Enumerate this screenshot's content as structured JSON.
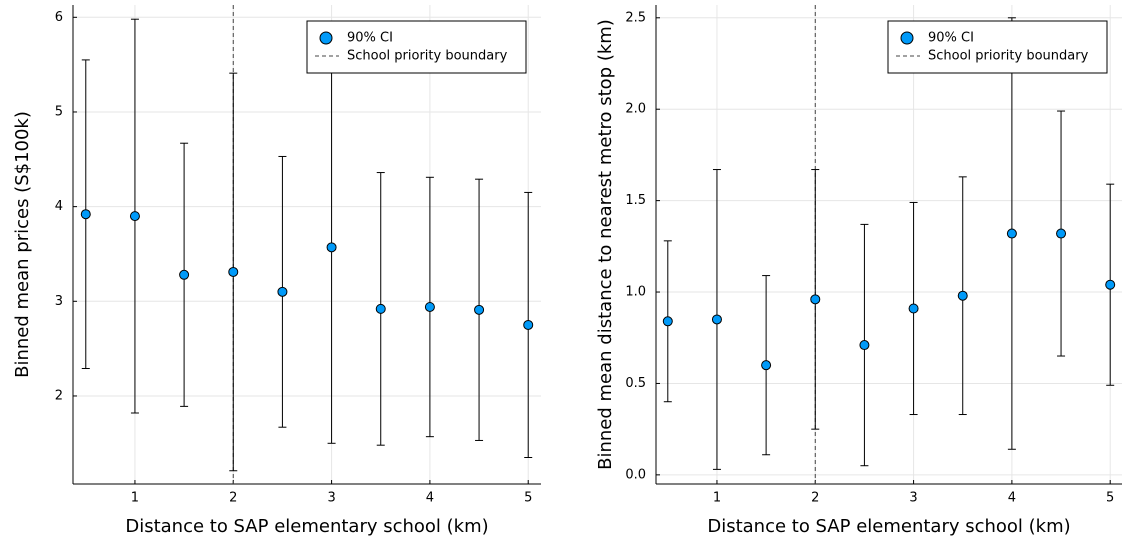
{
  "chart_data": [
    {
      "type": "scatter",
      "x_label": "Distance to SAP elementary school (km)",
      "y_label": "Binned mean prices (S$100k)",
      "x": [
        0.5,
        1,
        1.5,
        2,
        2.5,
        3,
        3.5,
        4,
        4.5,
        5
      ],
      "series": [
        {
          "name": "90% CI",
          "color": "#009af9",
          "values": [
            3.92,
            3.9,
            3.28,
            3.31,
            3.1,
            3.57,
            2.92,
            2.94,
            2.91,
            2.75
          ],
          "errors": [
            1.63,
            2.08,
            1.39,
            2.1,
            1.43,
            2.07,
            1.44,
            1.37,
            1.38,
            1.4
          ]
        }
      ],
      "reference_line": {
        "name": "School priority boundary",
        "x": 2
      },
      "xlim": [
        0.37,
        5.13
      ],
      "xticks": [
        1,
        2,
        3,
        4,
        5
      ],
      "ylim": [
        1.07,
        6.13
      ],
      "yticks": [
        2,
        3,
        4,
        5,
        6
      ],
      "grid": true,
      "legend": "top-right"
    },
    {
      "type": "scatter",
      "x_label": "Distance to SAP elementary school (km)",
      "y_label": "Binned mean distance to nearest metro stop (km)",
      "x": [
        0.5,
        1,
        1.5,
        2,
        2.5,
        3,
        3.5,
        4,
        4.5,
        5
      ],
      "series": [
        {
          "name": "90% CI",
          "color": "#009af9",
          "values": [
            0.84,
            0.85,
            0.6,
            0.96,
            0.71,
            0.91,
            0.98,
            1.32,
            1.32,
            1.04
          ],
          "errors": [
            0.44,
            0.82,
            0.49,
            0.71,
            0.66,
            0.58,
            0.65,
            1.18,
            0.67,
            0.55
          ]
        }
      ],
      "reference_line": {
        "name": "School priority boundary",
        "x": 2
      },
      "xlim": [
        0.38,
        5.12
      ],
      "xticks": [
        1,
        2,
        3,
        4,
        5
      ],
      "ylim": [
        -0.05,
        2.57
      ],
      "yticks": [
        {
          "value": 0,
          "label": "0.0"
        },
        0.5,
        {
          "value": 1,
          "label": "1.0"
        },
        1.5,
        {
          "value": 2,
          "label": "2.0"
        },
        2.5
      ],
      "grid": true,
      "legend": "top-right"
    }
  ]
}
